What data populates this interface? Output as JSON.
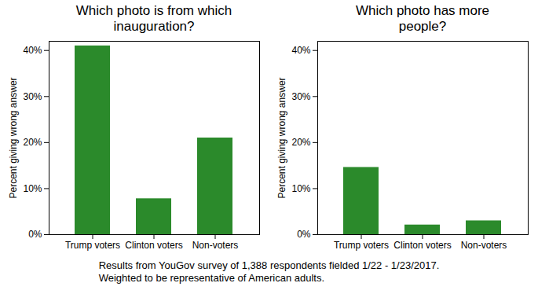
{
  "chart_data": [
    {
      "type": "bar",
      "title": "Which photo is from which inauguration?",
      "categories": [
        "Trump voters",
        "Clinton voters",
        "Non-voters"
      ],
      "values": [
        41,
        7.8,
        21
      ],
      "color": "#2b8a2b",
      "ylabel": "Percent giving wrong answer",
      "ylim": [
        0,
        42
      ],
      "yticks": [
        {
          "value": 0,
          "label": "0%"
        },
        {
          "value": 10,
          "label": "10%"
        },
        {
          "value": 20,
          "label": "20%"
        },
        {
          "value": 30,
          "label": "30%"
        },
        {
          "value": 40,
          "label": "40%"
        }
      ],
      "grid": false
    },
    {
      "type": "bar",
      "title": "Which photo has more people?",
      "categories": [
        "Trump voters",
        "Clinton voters",
        "Non-voters"
      ],
      "values": [
        14.6,
        2.1,
        3.0
      ],
      "color": "#2b8a2b",
      "ylabel": "Percent giving wrong answer",
      "ylim": [
        0,
        42
      ],
      "yticks": [
        {
          "value": 0,
          "label": "0%"
        },
        {
          "value": 10,
          "label": "10%"
        },
        {
          "value": 20,
          "label": "20%"
        },
        {
          "value": 30,
          "label": "30%"
        },
        {
          "value": 40,
          "label": "40%"
        }
      ],
      "grid": false
    }
  ],
  "caption": [
    "Results from YouGov survey of 1,388 respondents fielded 1/22 - 1/23/2017.",
    "Weighted to be representative of American adults."
  ]
}
